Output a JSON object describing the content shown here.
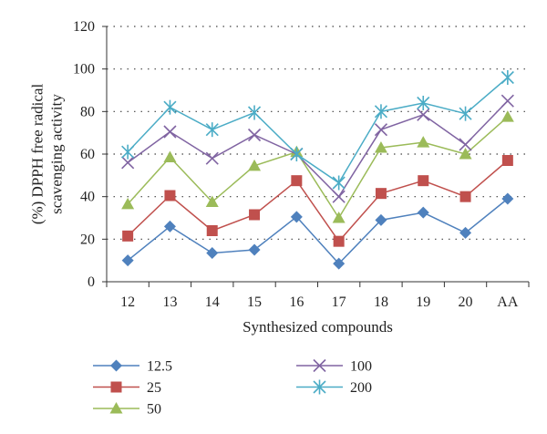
{
  "chart_data": {
    "type": "line",
    "title": "",
    "xlabel": "Synthesized compounds",
    "ylabel_lines": [
      "(%) DPPH free radical",
      "scavenging activity"
    ],
    "categories": [
      "12",
      "13",
      "14",
      "15",
      "16",
      "17",
      "18",
      "19",
      "20",
      "AA"
    ],
    "ylim": [
      0,
      120
    ],
    "yticks": [
      0,
      20,
      40,
      60,
      80,
      100,
      120
    ],
    "grid": "horizontal-dotted",
    "legend_position": "bottom",
    "series": [
      {
        "name": "12.5",
        "color": "#4f81bd",
        "marker": "diamond",
        "values": [
          10,
          26,
          13.5,
          15,
          30.5,
          8.5,
          29,
          32.5,
          23,
          39
        ]
      },
      {
        "name": "25",
        "color": "#c0504d",
        "marker": "square",
        "values": [
          21.5,
          40.5,
          24,
          31.5,
          47.5,
          19,
          41.5,
          47.5,
          40,
          57
        ]
      },
      {
        "name": "50",
        "color": "#9bbb59",
        "marker": "triangle",
        "values": [
          36.5,
          58.5,
          37.5,
          54.5,
          61,
          30,
          63,
          65.5,
          60,
          77.5
        ]
      },
      {
        "name": "100",
        "color": "#8064a2",
        "marker": "x",
        "values": [
          56,
          70.5,
          58,
          69,
          60,
          40,
          71.5,
          78.5,
          64.5,
          85
        ]
      },
      {
        "name": "200",
        "color": "#4bacc6",
        "marker": "star",
        "values": [
          61,
          82,
          71.5,
          79.5,
          60,
          46.5,
          80,
          84,
          79,
          96
        ]
      }
    ]
  }
}
